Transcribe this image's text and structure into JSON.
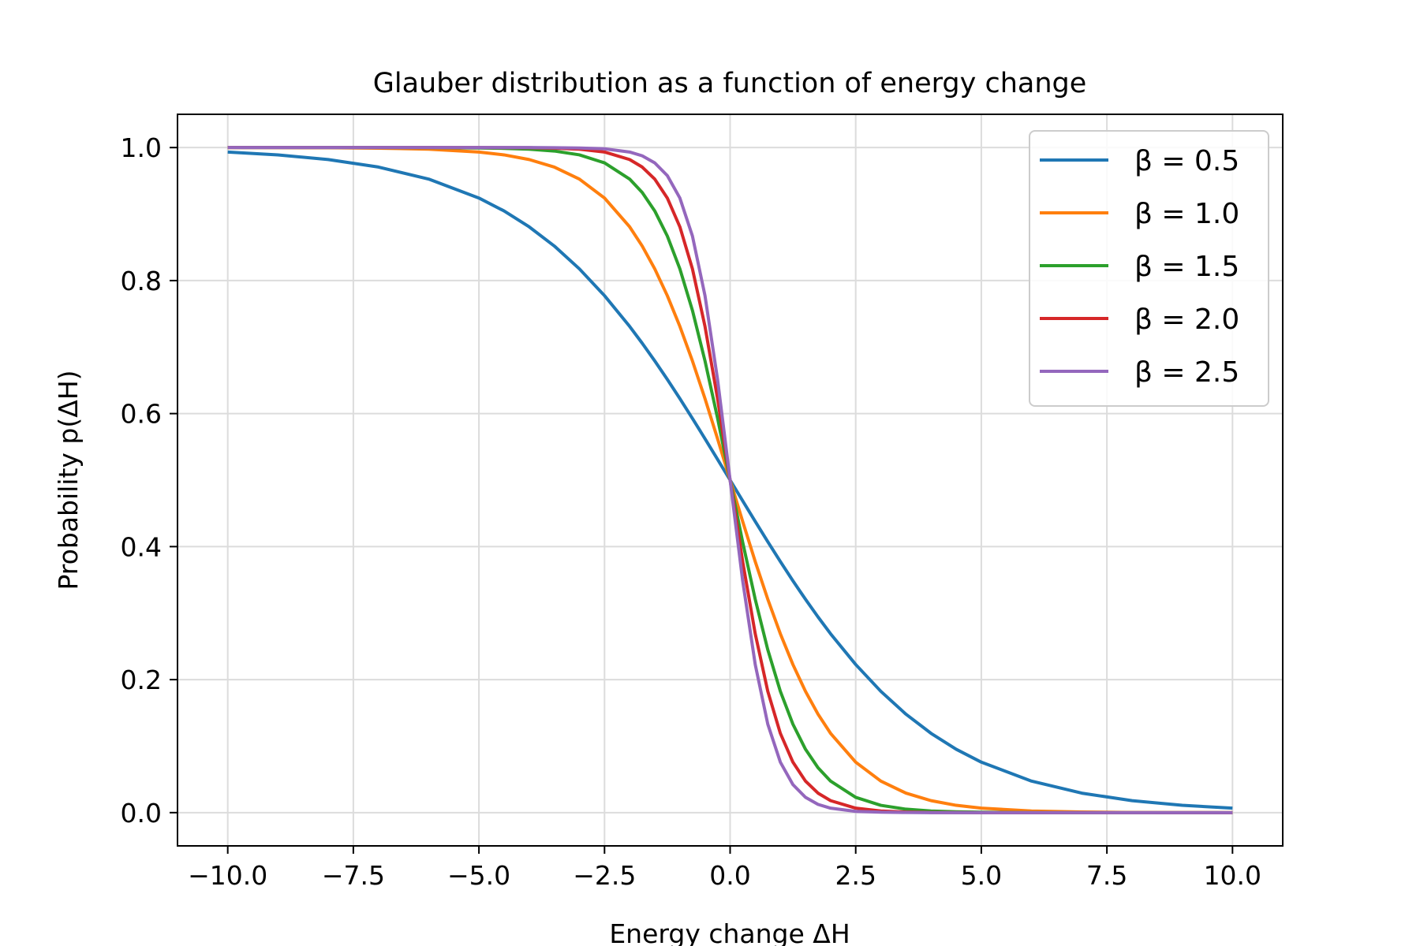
{
  "chart_data": {
    "type": "line",
    "title": "Glauber distribution as a function of energy change",
    "xlabel": "Energy change ΔH",
    "ylabel": "Probability p(ΔH)",
    "xlim": [
      -11.0,
      11.0
    ],
    "ylim": [
      -0.05,
      1.05
    ],
    "xticks": [
      -10.0,
      -7.5,
      -5.0,
      -2.5,
      0.0,
      2.5,
      5.0,
      7.5,
      10.0
    ],
    "xtick_labels": [
      "−10.0",
      "−7.5",
      "−5.0",
      "−2.5",
      "0.0",
      "2.5",
      "5.0",
      "7.5",
      "10.0"
    ],
    "yticks": [
      0.0,
      0.2,
      0.4,
      0.6,
      0.8,
      1.0
    ],
    "ytick_labels": [
      "0.0",
      "0.2",
      "0.4",
      "0.6",
      "0.8",
      "1.0"
    ],
    "grid": true,
    "legend_position": "top-right",
    "x": [
      -10.0,
      -9.0,
      -8.0,
      -7.0,
      -6.0,
      -5.0,
      -4.5,
      -4.0,
      -3.5,
      -3.0,
      -2.5,
      -2.0,
      -1.75,
      -1.5,
      -1.25,
      -1.0,
      -0.75,
      -0.5,
      -0.25,
      0.0,
      0.25,
      0.5,
      0.75,
      1.0,
      1.25,
      1.5,
      1.75,
      2.0,
      2.5,
      3.0,
      3.5,
      4.0,
      4.5,
      5.0,
      6.0,
      7.0,
      8.0,
      9.0,
      10.0
    ],
    "series": [
      {
        "name": "β = 0.5",
        "color": "#1f77b4",
        "values": [
          0.9933,
          0.989,
          0.982,
          0.9707,
          0.9526,
          0.9241,
          0.9047,
          0.8808,
          0.852,
          0.8176,
          0.7773,
          0.7311,
          0.7058,
          0.6792,
          0.6514,
          0.6225,
          0.5927,
          0.5622,
          0.5312,
          0.5,
          0.4688,
          0.4378,
          0.4073,
          0.3775,
          0.3486,
          0.3208,
          0.2942,
          0.2689,
          0.2227,
          0.1824,
          0.148,
          0.1192,
          0.0953,
          0.0759,
          0.0474,
          0.0293,
          0.018,
          0.011,
          0.0067
        ]
      },
      {
        "name": "β = 1.0",
        "color": "#ff7f0e",
        "values": [
          1.0,
          0.9999,
          0.9997,
          0.9991,
          0.9975,
          0.9933,
          0.989,
          0.982,
          0.9707,
          0.9526,
          0.9241,
          0.8808,
          0.852,
          0.8176,
          0.7773,
          0.7311,
          0.6792,
          0.6225,
          0.5622,
          0.5,
          0.4378,
          0.3775,
          0.3208,
          0.2689,
          0.2227,
          0.1824,
          0.148,
          0.1192,
          0.0759,
          0.0474,
          0.0293,
          0.018,
          0.011,
          0.0067,
          0.0025,
          0.0009,
          0.0003,
          0.0001,
          0.0
        ]
      },
      {
        "name": "β = 1.5",
        "color": "#2ca02c",
        "values": [
          1.0,
          1.0,
          1.0,
          1.0,
          0.9999,
          0.9994,
          0.9988,
          0.9975,
          0.9948,
          0.989,
          0.977,
          0.9526,
          0.9325,
          0.9047,
          0.867,
          0.8176,
          0.7551,
          0.6792,
          0.5933,
          0.5,
          0.4067,
          0.3208,
          0.2449,
          0.1824,
          0.133,
          0.0953,
          0.0675,
          0.0474,
          0.023,
          0.011,
          0.0052,
          0.0025,
          0.0012,
          0.0006,
          0.0001,
          0.0,
          0.0,
          0.0,
          0.0
        ]
      },
      {
        "name": "β = 2.0",
        "color": "#d62728",
        "values": [
          1.0,
          1.0,
          1.0,
          1.0,
          1.0,
          1.0,
          0.9999,
          0.9997,
          0.9991,
          0.9975,
          0.9933,
          0.982,
          0.9707,
          0.9526,
          0.9241,
          0.8808,
          0.8176,
          0.7311,
          0.6225,
          0.5,
          0.3775,
          0.2689,
          0.1824,
          0.1192,
          0.0759,
          0.0474,
          0.0293,
          0.018,
          0.0067,
          0.0025,
          0.0009,
          0.0003,
          0.0001,
          0.0,
          0.0,
          0.0,
          0.0,
          0.0,
          0.0
        ]
      },
      {
        "name": "β = 2.5",
        "color": "#9467bd",
        "values": [
          1.0,
          1.0,
          1.0,
          1.0,
          1.0,
          1.0,
          1.0,
          1.0,
          0.9998,
          0.9994,
          0.9981,
          0.9933,
          0.9876,
          0.977,
          0.9578,
          0.9241,
          0.867,
          0.7773,
          0.6514,
          0.5,
          0.3486,
          0.2227,
          0.133,
          0.0759,
          0.0422,
          0.023,
          0.0124,
          0.0067,
          0.0019,
          0.0006,
          0.0002,
          0.0,
          0.0,
          0.0,
          0.0,
          0.0,
          0.0,
          0.0,
          0.0
        ]
      }
    ]
  }
}
